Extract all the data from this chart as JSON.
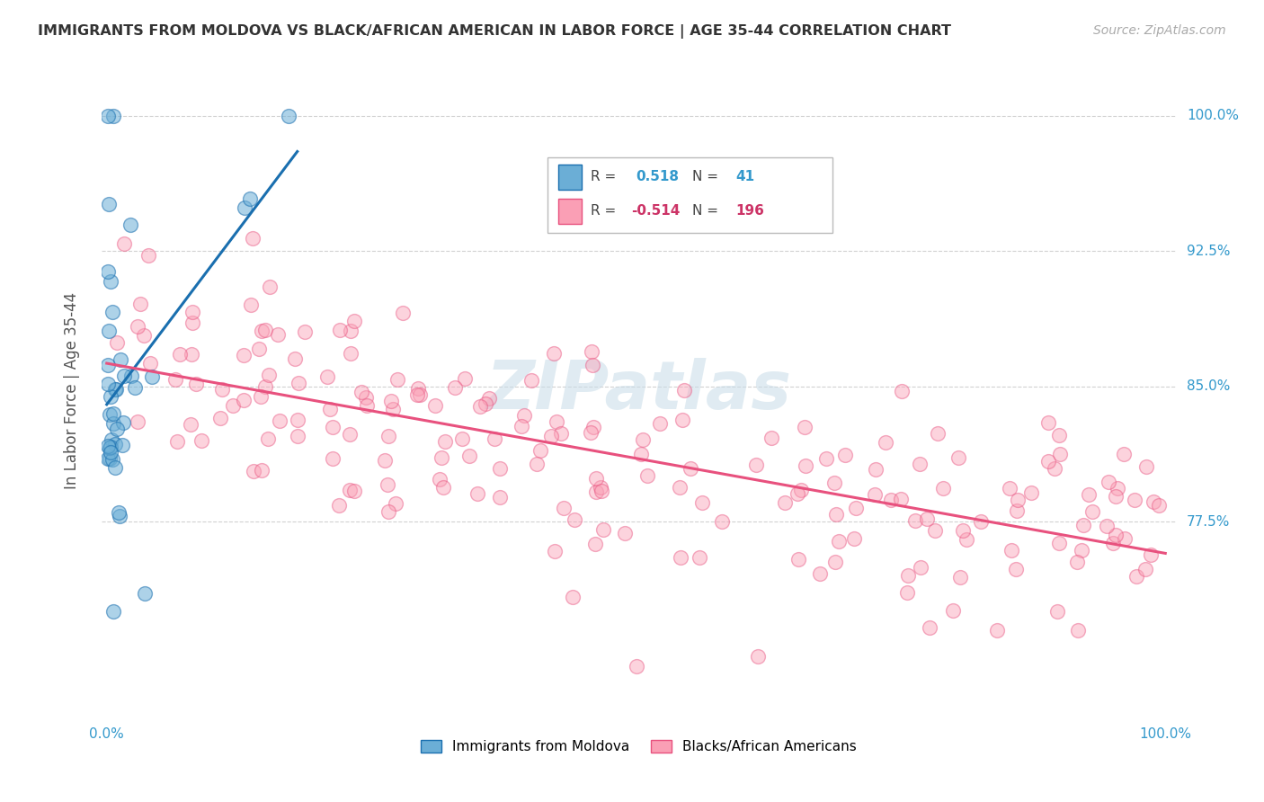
{
  "title": "IMMIGRANTS FROM MOLDOVA VS BLACK/AFRICAN AMERICAN IN LABOR FORCE | AGE 35-44 CORRELATION CHART",
  "source": "Source: ZipAtlas.com",
  "ylabel": "In Labor Force | Age 35-44",
  "legend_R_blue": "0.518",
  "legend_N_blue": "41",
  "legend_R_pink": "-0.514",
  "legend_N_pink": "196",
  "blue_color": "#6baed6",
  "blue_line_color": "#1a6faf",
  "pink_color": "#fa9fb5",
  "pink_line_color": "#e8517e",
  "watermark": "ZIPatlas",
  "background_color": "#ffffff",
  "grid_color": "#cccccc",
  "ytick_vals": [
    0.775,
    0.85,
    0.925,
    1.0
  ],
  "ytick_labels": [
    "77.5%",
    "85.0%",
    "92.5%",
    "100.0%"
  ],
  "xlim": [
    -0.005,
    1.01
  ],
  "ylim": [
    0.665,
    1.03
  ]
}
